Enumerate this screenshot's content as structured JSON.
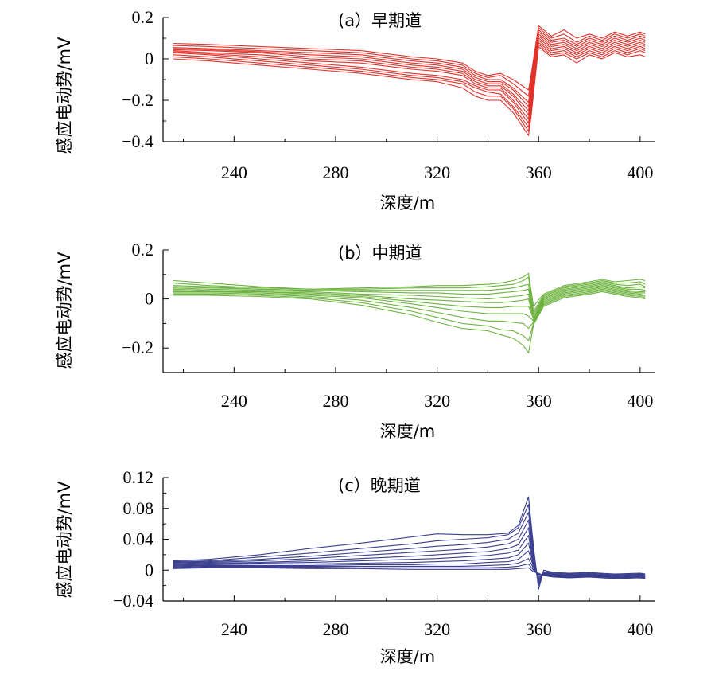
{
  "chart_data": [
    {
      "type": "line",
      "title": "(a）早期道",
      "xlabel": "深度/m",
      "ylabel": "感应电动势/mV",
      "xlim": [
        212,
        406
      ],
      "ylim": [
        -0.4,
        0.2
      ],
      "xticks": [
        "240",
        "280",
        "320",
        "360",
        "400"
      ],
      "xtick_values": [
        240,
        280,
        320,
        360,
        400
      ],
      "yticks": [
        "0.2",
        "0",
        "−0.2",
        "−0.4"
      ],
      "ytick_values": [
        0.2,
        0,
        -0.2,
        -0.4
      ],
      "color": "#e0322b",
      "grid": false,
      "x": [
        216,
        230,
        250,
        270,
        290,
        310,
        320,
        330,
        335,
        340,
        345,
        350,
        356,
        357,
        360,
        365,
        370,
        375,
        380,
        385,
        390,
        395,
        400,
        402
      ],
      "series": [
        {
          "values": [
            0.075,
            0.07,
            0.06,
            0.05,
            0.04,
            0.01,
            0.0,
            -0.02,
            -0.06,
            -0.08,
            -0.07,
            -0.1,
            -0.15,
            -0.08,
            0.16,
            0.11,
            0.14,
            0.1,
            0.12,
            0.1,
            0.13,
            0.11,
            0.13,
            0.12
          ]
        },
        {
          "values": [
            0.065,
            0.06,
            0.05,
            0.04,
            0.03,
            0.0,
            -0.01,
            -0.03,
            -0.07,
            -0.09,
            -0.08,
            -0.12,
            -0.18,
            -0.1,
            0.15,
            0.1,
            0.12,
            0.08,
            0.11,
            0.09,
            0.12,
            0.1,
            0.12,
            0.11
          ]
        },
        {
          "values": [
            0.055,
            0.05,
            0.04,
            0.03,
            0.02,
            -0.01,
            -0.02,
            -0.04,
            -0.08,
            -0.1,
            -0.1,
            -0.14,
            -0.21,
            -0.12,
            0.14,
            0.09,
            0.1,
            0.07,
            0.1,
            0.08,
            0.11,
            0.09,
            0.11,
            0.1
          ]
        },
        {
          "values": [
            0.05,
            0.045,
            0.035,
            0.02,
            0.01,
            -0.02,
            -0.03,
            -0.05,
            -0.09,
            -0.11,
            -0.11,
            -0.15,
            -0.23,
            -0.14,
            0.13,
            0.08,
            0.09,
            0.06,
            0.09,
            0.07,
            0.1,
            0.08,
            0.1,
            0.09
          ]
        },
        {
          "values": [
            0.045,
            0.04,
            0.03,
            0.01,
            0.0,
            -0.03,
            -0.04,
            -0.06,
            -0.1,
            -0.12,
            -0.12,
            -0.17,
            -0.25,
            -0.16,
            0.12,
            0.07,
            0.08,
            0.05,
            0.08,
            0.06,
            0.09,
            0.07,
            0.09,
            0.08
          ]
        },
        {
          "values": [
            0.04,
            0.03,
            0.02,
            0.0,
            -0.01,
            -0.04,
            -0.05,
            -0.07,
            -0.11,
            -0.13,
            -0.13,
            -0.18,
            -0.27,
            -0.18,
            0.11,
            0.06,
            0.07,
            0.04,
            0.07,
            0.05,
            0.08,
            0.06,
            0.08,
            0.07
          ]
        },
        {
          "values": [
            0.035,
            0.025,
            0.01,
            -0.01,
            -0.02,
            -0.05,
            -0.06,
            -0.08,
            -0.12,
            -0.14,
            -0.14,
            -0.2,
            -0.29,
            -0.2,
            0.1,
            0.05,
            0.06,
            0.03,
            0.06,
            0.04,
            0.07,
            0.05,
            0.07,
            0.06
          ]
        },
        {
          "values": [
            0.03,
            0.02,
            0.0,
            -0.02,
            -0.04,
            -0.07,
            -0.08,
            -0.1,
            -0.13,
            -0.15,
            -0.15,
            -0.21,
            -0.31,
            -0.22,
            0.09,
            0.04,
            0.05,
            0.02,
            0.05,
            0.03,
            0.06,
            0.04,
            0.06,
            0.05
          ]
        },
        {
          "values": [
            0.02,
            0.01,
            -0.01,
            -0.03,
            -0.05,
            -0.08,
            -0.09,
            -0.11,
            -0.14,
            -0.16,
            -0.17,
            -0.23,
            -0.33,
            -0.24,
            0.08,
            0.03,
            0.04,
            0.01,
            0.04,
            0.02,
            0.05,
            0.03,
            0.05,
            0.04
          ]
        },
        {
          "values": [
            0.01,
            0.0,
            -0.02,
            -0.04,
            -0.06,
            -0.09,
            -0.1,
            -0.12,
            -0.16,
            -0.18,
            -0.18,
            -0.24,
            -0.35,
            -0.26,
            0.07,
            0.02,
            0.03,
            0.0,
            0.03,
            0.01,
            0.04,
            0.02,
            0.04,
            0.03
          ]
        },
        {
          "values": [
            0.0,
            -0.01,
            -0.03,
            -0.05,
            -0.07,
            -0.1,
            -0.11,
            -0.14,
            -0.18,
            -0.2,
            -0.2,
            -0.26,
            -0.37,
            -0.28,
            0.06,
            0.01,
            0.02,
            -0.02,
            0.02,
            0.0,
            0.03,
            0.01,
            0.02,
            0.01
          ]
        }
      ]
    },
    {
      "type": "line",
      "title": "(b）中期道",
      "xlabel": "深度/m",
      "ylabel": "感应电动势/mV",
      "xlim": [
        212,
        406
      ],
      "ylim": [
        -0.3,
        0.2
      ],
      "xticks": [
        "240",
        "280",
        "320",
        "360",
        "400"
      ],
      "xtick_values": [
        240,
        280,
        320,
        360,
        400
      ],
      "yticks": [
        "0.2",
        "0",
        "−0.2"
      ],
      "ytick_values": [
        0.2,
        0,
        -0.2
      ],
      "color": "#6db33f",
      "grid": false,
      "x": [
        216,
        230,
        250,
        270,
        290,
        310,
        320,
        330,
        340,
        345,
        350,
        354,
        356,
        358,
        362,
        370,
        380,
        385,
        390,
        395,
        400,
        402
      ],
      "series": [
        {
          "values": [
            0.075,
            0.065,
            0.05,
            0.04,
            0.045,
            0.05,
            0.055,
            0.055,
            0.06,
            0.065,
            0.075,
            0.09,
            0.105,
            -0.03,
            0.02,
            0.055,
            0.07,
            0.08,
            0.07,
            0.075,
            0.08,
            0.075
          ]
        },
        {
          "values": [
            0.065,
            0.055,
            0.045,
            0.04,
            0.04,
            0.045,
            0.045,
            0.045,
            0.05,
            0.055,
            0.06,
            0.075,
            0.09,
            -0.05,
            0.015,
            0.05,
            0.065,
            0.075,
            0.065,
            0.065,
            0.07,
            0.06
          ]
        },
        {
          "values": [
            0.055,
            0.05,
            0.04,
            0.035,
            0.035,
            0.035,
            0.035,
            0.035,
            0.035,
            0.04,
            0.045,
            0.055,
            0.06,
            -0.06,
            0.01,
            0.045,
            0.06,
            0.07,
            0.06,
            0.055,
            0.06,
            0.05
          ]
        },
        {
          "values": [
            0.05,
            0.045,
            0.04,
            0.035,
            0.03,
            0.025,
            0.025,
            0.02,
            0.02,
            0.025,
            0.03,
            0.035,
            0.04,
            -0.07,
            0.005,
            0.04,
            0.055,
            0.065,
            0.055,
            0.045,
            0.05,
            0.045
          ]
        },
        {
          "values": [
            0.045,
            0.04,
            0.035,
            0.03,
            0.02,
            0.015,
            0.01,
            0.005,
            0.0,
            0.005,
            0.01,
            0.015,
            0.02,
            -0.08,
            0.0,
            0.035,
            0.05,
            0.06,
            0.05,
            0.04,
            0.04,
            0.035
          ]
        },
        {
          "values": [
            0.04,
            0.035,
            0.03,
            0.025,
            0.015,
            0.0,
            -0.005,
            -0.01,
            -0.015,
            -0.015,
            -0.01,
            -0.005,
            0.0,
            -0.085,
            -0.005,
            0.03,
            0.045,
            0.055,
            0.045,
            0.035,
            0.03,
            0.03
          ]
        },
        {
          "values": [
            0.035,
            0.03,
            0.03,
            0.02,
            0.01,
            -0.01,
            -0.02,
            -0.03,
            -0.035,
            -0.035,
            -0.03,
            -0.03,
            -0.03,
            -0.08,
            -0.01,
            0.025,
            0.04,
            0.05,
            0.04,
            0.03,
            0.025,
            0.025
          ]
        },
        {
          "values": [
            0.03,
            0.03,
            0.025,
            0.015,
            0.005,
            -0.02,
            -0.035,
            -0.05,
            -0.06,
            -0.06,
            -0.06,
            -0.06,
            -0.07,
            -0.09,
            -0.015,
            0.02,
            0.035,
            0.045,
            0.035,
            0.025,
            0.02,
            0.015
          ]
        },
        {
          "values": [
            0.025,
            0.025,
            0.02,
            0.01,
            -0.005,
            -0.035,
            -0.055,
            -0.075,
            -0.09,
            -0.09,
            -0.095,
            -0.1,
            -0.12,
            -0.095,
            -0.02,
            0.015,
            0.03,
            0.04,
            0.03,
            0.02,
            0.015,
            0.01
          ]
        },
        {
          "values": [
            0.02,
            0.02,
            0.015,
            0.005,
            -0.015,
            -0.05,
            -0.075,
            -0.1,
            -0.11,
            -0.125,
            -0.13,
            -0.15,
            -0.17,
            -0.1,
            -0.025,
            0.01,
            0.025,
            0.035,
            0.025,
            0.015,
            0.01,
            0.005
          ]
        },
        {
          "values": [
            0.015,
            0.015,
            0.01,
            0.0,
            -0.025,
            -0.065,
            -0.095,
            -0.12,
            -0.13,
            -0.145,
            -0.16,
            -0.19,
            -0.22,
            -0.105,
            -0.03,
            0.005,
            0.02,
            0.03,
            0.02,
            0.01,
            0.005,
            0.0
          ]
        }
      ]
    },
    {
      "type": "line",
      "title": "(c）晚期道",
      "xlabel": "深度/m",
      "ylabel": "感应电动势/mV",
      "xlim": [
        212,
        406
      ],
      "ylim": [
        -0.04,
        0.12
      ],
      "xticks": [
        "240",
        "280",
        "320",
        "360",
        "400"
      ],
      "xtick_values": [
        240,
        280,
        320,
        360,
        400
      ],
      "yticks": [
        "0.12",
        "0.08",
        "0.04",
        "0",
        "−0.04"
      ],
      "ytick_values": [
        0.12,
        0.08,
        0.04,
        0,
        -0.04
      ],
      "color": "#3a3f8f",
      "grid": false,
      "x": [
        216,
        230,
        250,
        270,
        290,
        310,
        320,
        330,
        340,
        348,
        352,
        356,
        358,
        360,
        362,
        366,
        372,
        380,
        390,
        400,
        402
      ],
      "series": [
        {
          "values": [
            0.012,
            0.014,
            0.02,
            0.028,
            0.035,
            0.043,
            0.047,
            0.046,
            0.046,
            0.048,
            0.058,
            0.095,
            0.03,
            -0.025,
            0.0,
            -0.003,
            -0.004,
            -0.003,
            -0.005,
            -0.004,
            -0.005
          ]
        },
        {
          "values": [
            0.011,
            0.012,
            0.017,
            0.022,
            0.028,
            0.034,
            0.038,
            0.04,
            0.042,
            0.046,
            0.055,
            0.085,
            0.025,
            -0.02,
            -0.002,
            -0.004,
            -0.005,
            -0.004,
            -0.006,
            -0.005,
            -0.006
          ]
        },
        {
          "values": [
            0.01,
            0.011,
            0.014,
            0.018,
            0.023,
            0.028,
            0.031,
            0.033,
            0.036,
            0.04,
            0.048,
            0.075,
            0.02,
            -0.018,
            -0.003,
            -0.005,
            -0.006,
            -0.005,
            -0.007,
            -0.006,
            -0.007
          ]
        },
        {
          "values": [
            0.009,
            0.01,
            0.012,
            0.015,
            0.019,
            0.023,
            0.025,
            0.027,
            0.03,
            0.034,
            0.04,
            0.065,
            0.015,
            -0.016,
            -0.004,
            -0.006,
            -0.007,
            -0.006,
            -0.008,
            -0.007,
            -0.008
          ]
        },
        {
          "values": [
            0.008,
            0.009,
            0.01,
            0.012,
            0.015,
            0.018,
            0.02,
            0.022,
            0.024,
            0.028,
            0.033,
            0.055,
            0.01,
            -0.014,
            -0.004,
            -0.006,
            -0.006,
            -0.006,
            -0.007,
            -0.006,
            -0.007
          ]
        },
        {
          "values": [
            0.007,
            0.008,
            0.009,
            0.01,
            0.012,
            0.014,
            0.015,
            0.017,
            0.019,
            0.022,
            0.026,
            0.045,
            0.008,
            -0.012,
            -0.005,
            -0.007,
            -0.007,
            -0.007,
            -0.008,
            -0.007,
            -0.008
          ]
        },
        {
          "values": [
            0.006,
            0.007,
            0.008,
            0.008,
            0.009,
            0.01,
            0.011,
            0.012,
            0.014,
            0.016,
            0.02,
            0.035,
            0.006,
            -0.01,
            -0.005,
            -0.007,
            -0.008,
            -0.007,
            -0.009,
            -0.008,
            -0.009
          ]
        },
        {
          "values": [
            0.005,
            0.006,
            0.006,
            0.006,
            0.007,
            0.007,
            0.008,
            0.008,
            0.01,
            0.011,
            0.014,
            0.025,
            0.004,
            -0.008,
            -0.006,
            -0.008,
            -0.008,
            -0.008,
            -0.009,
            -0.008,
            -0.009
          ]
        },
        {
          "values": [
            0.004,
            0.005,
            0.005,
            0.005,
            0.005,
            0.005,
            0.005,
            0.005,
            0.006,
            0.007,
            0.009,
            0.015,
            0.002,
            -0.006,
            -0.006,
            -0.008,
            -0.009,
            -0.008,
            -0.01,
            -0.009,
            -0.01
          ]
        },
        {
          "values": [
            0.003,
            0.004,
            0.004,
            0.004,
            0.003,
            0.003,
            0.003,
            0.003,
            0.003,
            0.004,
            0.005,
            0.008,
            0.0,
            -0.005,
            -0.007,
            -0.009,
            -0.009,
            -0.009,
            -0.01,
            -0.009,
            -0.01
          ]
        },
        {
          "values": [
            0.002,
            0.003,
            0.003,
            0.002,
            0.002,
            0.001,
            0.001,
            0.001,
            0.001,
            0.001,
            0.002,
            0.003,
            -0.002,
            -0.004,
            -0.007,
            -0.009,
            -0.01,
            -0.009,
            -0.011,
            -0.01,
            -0.011
          ]
        }
      ]
    }
  ]
}
